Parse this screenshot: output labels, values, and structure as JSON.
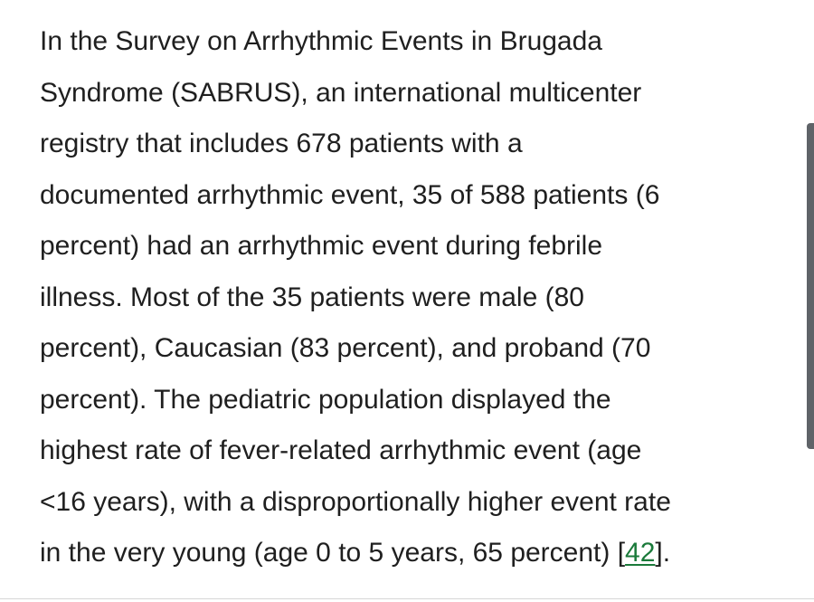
{
  "paragraph": {
    "lines": [
      "In the Survey on Arrhythmic Events in Brugada",
      "Syndrome (SABRUS), an international multicenter",
      "registry that includes 678 patients with a",
      "documented arrhythmic event, 35 of 588 patients (6",
      "percent) had an arrhythmic event during febrile",
      "illness. Most of the 35 patients were male (80",
      "percent), Caucasian (83 percent), and proband (70",
      "percent). The pediatric population displayed the",
      "highest rate of fever-related arrhythmic event (age",
      "<16 years), with a disproportionally higher event rate"
    ],
    "last_line_before": "in the very young (age 0 to 5 years, 65 percent) [",
    "citation": "42",
    "last_line_after": "]."
  },
  "colors": {
    "text": "#1f1f1f",
    "link": "#1a7a3a",
    "scrollbar": "#5f6368"
  }
}
